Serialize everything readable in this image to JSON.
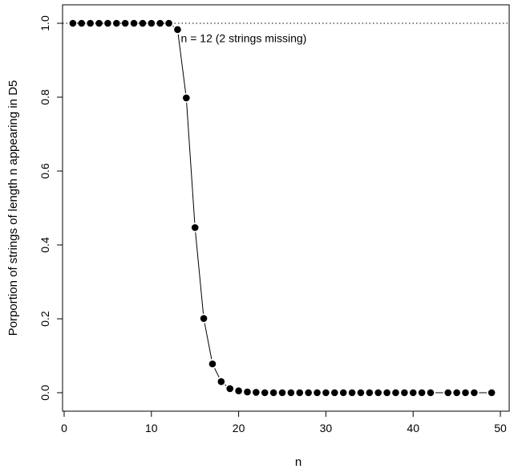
{
  "chart_data": {
    "type": "scatter",
    "title": "",
    "xlabel": "n",
    "ylabel": "Porportion of strings of length n appearing in D5",
    "xlim": [
      0,
      50
    ],
    "ylim": [
      0,
      1
    ],
    "x_ticks": [
      0,
      10,
      20,
      30,
      40,
      50
    ],
    "y_ticks": [
      0.0,
      0.2,
      0.4,
      0.6,
      0.8,
      1.0
    ],
    "x_tick_labels": [
      "0",
      "10",
      "20",
      "30",
      "40",
      "50"
    ],
    "y_tick_labels": [
      "0.0",
      "0.2",
      "0.4",
      "0.6",
      "0.8",
      "1.0"
    ],
    "grid": false,
    "legend": "none",
    "reference_line": {
      "y": 1.0,
      "style": "dotted"
    },
    "annotation": {
      "text": "n = 12 (2 strings missing)",
      "x": 12,
      "y": 0.99
    },
    "series": [
      {
        "x": [
          1,
          2,
          3,
          4,
          5,
          6,
          7,
          8,
          9,
          10,
          11,
          12,
          13,
          14,
          15,
          16,
          17,
          18,
          19,
          20,
          21,
          22,
          23,
          24,
          25,
          26,
          27,
          28,
          29,
          30,
          31,
          32,
          33,
          34,
          35,
          36,
          37,
          38,
          39,
          40,
          41,
          42,
          44,
          45,
          46,
          47,
          49
        ],
        "y": [
          1.0,
          1.0,
          1.0,
          1.0,
          1.0,
          1.0,
          1.0,
          1.0,
          1.0,
          1.0,
          1.0,
          1.0,
          0.983,
          0.798,
          0.447,
          0.201,
          0.078,
          0.03,
          0.011,
          0.005,
          0.002,
          0.001,
          0.0,
          0.0,
          0.0,
          0.0,
          0.0,
          0.0,
          0.0,
          0.0,
          0.0,
          0.0,
          0.0,
          0.0,
          0.0,
          0.0,
          0.0,
          0.0,
          0.0,
          0.0,
          0.0,
          0.0,
          0.0,
          0.0,
          0.0,
          0.0,
          0.0
        ]
      }
    ],
    "colors": {
      "points": "#000000",
      "line": "#000000",
      "axis": "#000000"
    }
  }
}
